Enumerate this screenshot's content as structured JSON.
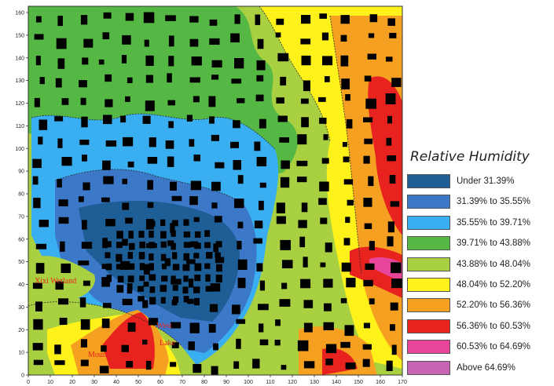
{
  "map": {
    "x_ticks": [
      "0",
      "10",
      "20",
      "30",
      "40",
      "50",
      "60",
      "70",
      "80",
      "90",
      "100",
      "110",
      "120",
      "130",
      "140",
      "150",
      "160",
      "170"
    ],
    "y_ticks": [
      "0",
      "10",
      "20",
      "30",
      "40",
      "50",
      "60",
      "70",
      "80",
      "90",
      "100",
      "110",
      "120",
      "130",
      "140",
      "150",
      "160"
    ],
    "places": [
      {
        "id": "xixi-wetland",
        "label": "Xixi Wetland"
      },
      {
        "id": "west-lake-west",
        "label": "West"
      },
      {
        "id": "west-lake-lake",
        "label": "Lake"
      },
      {
        "id": "mountains",
        "label": "Mountains"
      }
    ]
  },
  "legend": {
    "title": "Relative Humidity",
    "items": [
      {
        "label": "Under 31.39%",
        "color": "#1e5e96"
      },
      {
        "label": "31.39% to 35.55%",
        "color": "#3c78c8"
      },
      {
        "label": "35.55% to 39.71%",
        "color": "#39aef0"
      },
      {
        "label": "39.71% to 43.88%",
        "color": "#55b845"
      },
      {
        "label": "43.88% to 48.04%",
        "color": "#a8d040"
      },
      {
        "label": "48.04% to 52.20%",
        "color": "#fff21a"
      },
      {
        "label": "52.20% to 56.36%",
        "color": "#f5a020"
      },
      {
        "label": "56.36% to 60.53%",
        "color": "#e8231f"
      },
      {
        "label": "60.53% to 64.69%",
        "color": "#e8459a"
      },
      {
        "label": "Above 64.69%",
        "color": "#c864b4"
      }
    ]
  }
}
